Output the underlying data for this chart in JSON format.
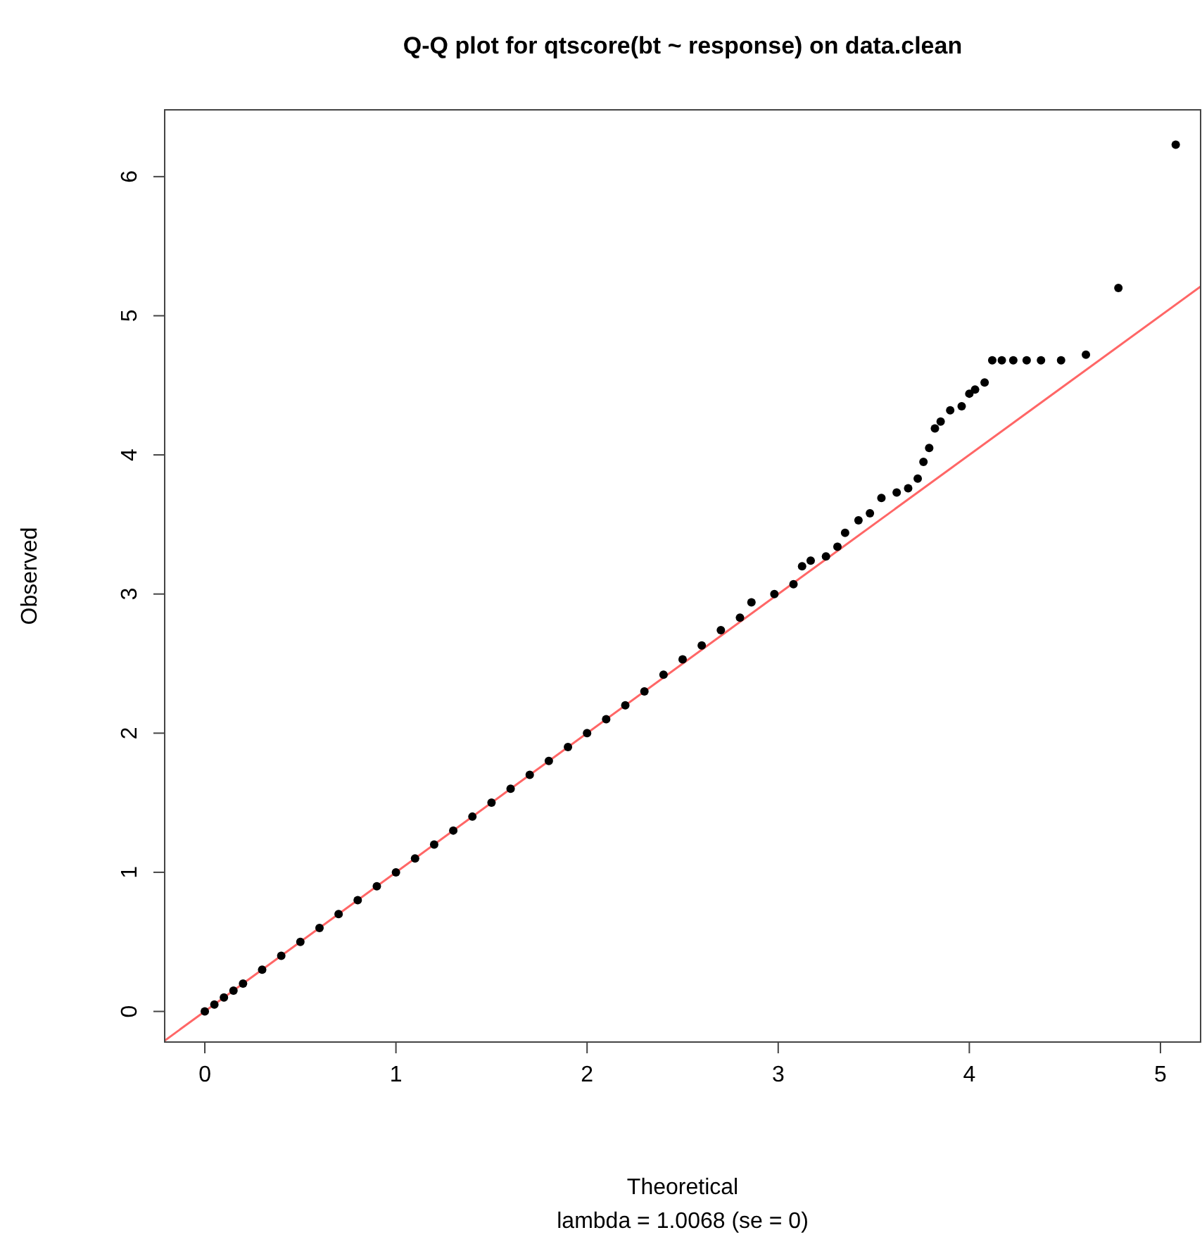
{
  "chart_data": {
    "type": "scatter",
    "title": "Q-Q plot for qtscore(bt ~ response) on data.clean",
    "xlabel": "Theoretical",
    "ylabel": "Observed",
    "annotations": [
      "lambda = 1.0068 (se = 0)"
    ],
    "xlim": [
      -0.21,
      5.21
    ],
    "ylim": [
      -0.22,
      6.48
    ],
    "xticks": [
      0,
      1,
      2,
      3,
      4,
      5
    ],
    "yticks": [
      0,
      1,
      2,
      3,
      4,
      5,
      6
    ],
    "grid": false,
    "series": [
      {
        "type": "line",
        "color": "#ff6666",
        "line_style": "solid",
        "x": [
          -0.21,
          5.21
        ],
        "values": [
          -0.21,
          5.21
        ]
      },
      {
        "color": "#000000",
        "marker": "circle",
        "x": [
          0,
          0.05,
          0.1,
          0.15,
          0.2,
          0.3,
          0.4,
          0.5,
          0.6,
          0.7,
          0.8,
          0.9,
          1.0,
          1.1,
          1.2,
          1.3,
          1.4,
          1.5,
          1.6,
          1.7,
          1.8,
          1.9,
          2.0,
          2.1,
          2.2,
          2.3,
          2.4,
          2.5,
          2.6,
          2.7,
          2.8,
          2.86,
          2.98,
          3.08,
          3.125,
          3.17,
          3.25,
          3.31,
          3.35,
          3.42,
          3.48,
          3.54,
          3.62,
          3.68,
          3.73,
          3.76,
          3.79,
          3.82,
          3.85,
          3.9,
          3.96,
          4.0,
          4.03,
          4.08,
          4.12,
          4.17,
          4.23,
          4.3,
          4.375,
          4.48,
          4.61,
          4.78,
          5.08
        ],
        "values": [
          0,
          0.05,
          0.1,
          0.15,
          0.2,
          0.3,
          0.4,
          0.5,
          0.6,
          0.7,
          0.8,
          0.9,
          1.0,
          1.1,
          1.2,
          1.3,
          1.4,
          1.5,
          1.6,
          1.7,
          1.8,
          1.9,
          2.0,
          2.1,
          2.2,
          2.3,
          2.42,
          2.53,
          2.63,
          2.74,
          2.83,
          2.94,
          3.0,
          3.07,
          3.2,
          3.24,
          3.27,
          3.34,
          3.44,
          3.53,
          3.58,
          3.69,
          3.73,
          3.76,
          3.83,
          3.95,
          4.05,
          4.19,
          4.24,
          4.32,
          4.35,
          4.44,
          4.47,
          4.52,
          4.68,
          4.68,
          4.68,
          4.68,
          4.68,
          4.68,
          4.72,
          5.2,
          6.23
        ]
      }
    ]
  }
}
